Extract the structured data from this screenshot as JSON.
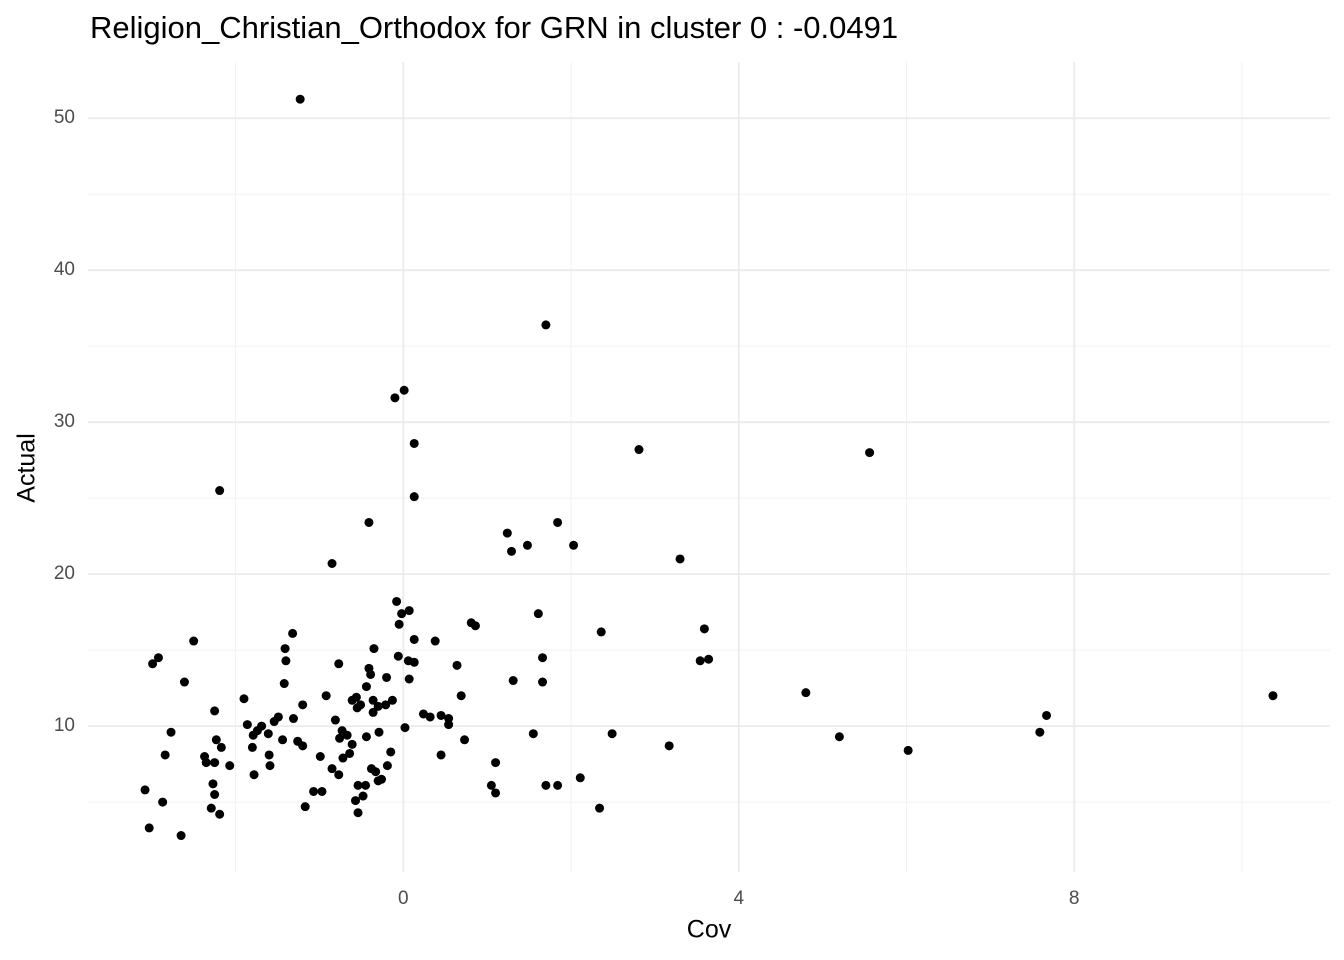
{
  "chart_data": {
    "type": "scatter",
    "title": "Religion_Christian_Orthodox for GRN in cluster 0 : -0.0491",
    "x_label": "Cov",
    "y_label": "Actual",
    "color": "#000000",
    "grid": true,
    "xlim": [
      -3.76,
      11.05
    ],
    "ylim": [
      0.4,
      53.7
    ],
    "xticks": [
      0,
      4,
      8
    ],
    "yticks": [
      10,
      20,
      30,
      40,
      50
    ],
    "xminor": [
      -2,
      2,
      6,
      10
    ],
    "yminor": [
      5,
      15,
      25,
      35,
      45
    ],
    "x": [
      -1.23,
      1.7,
      0.01,
      -0.1,
      0.13,
      2.81,
      5.56,
      -2.19,
      0.13,
      -0.41,
      1.84,
      1.24,
      1.48,
      2.03,
      1.29,
      3.3,
      -0.85,
      -0.08,
      0.07,
      -0.02,
      1.61,
      -0.05,
      0.81,
      0.86,
      -1.32,
      2.36,
      3.59,
      0.13,
      0.38,
      -2.5,
      -0.35,
      -1.41,
      -2.92,
      -2.99,
      -1.4,
      -0.06,
      0.06,
      0.13,
      1.66,
      3.54,
      3.64,
      -0.77,
      0.64,
      -0.41,
      -0.39,
      -0.2,
      0.07,
      1.31,
      1.66,
      -2.61,
      -1.42,
      -0.44,
      0.69,
      4.8,
      10.37,
      -0.92,
      -0.56,
      -1.9,
      -0.61,
      -0.36,
      -0.13,
      -1.2,
      -0.51,
      -0.21,
      -0.3,
      -0.55,
      -2.25,
      -0.36,
      0.24,
      7.67,
      0.32,
      0.45,
      -1.31,
      0.54,
      -1.49,
      -1.54,
      -0.81,
      -1.86,
      0.54,
      -1.69,
      0.02,
      -0.73,
      -1.74,
      -2.77,
      7.59,
      -0.29,
      -1.79,
      -1.61,
      1.55,
      -0.67,
      2.49,
      -0.44,
      -0.76,
      5.2,
      -1.44,
      -2.23,
      -1.26,
      0.73,
      -0.61,
      -1.2,
      3.17,
      -2.17,
      -1.8,
      6.02,
      -0.64,
      -0.15,
      -2.84,
      -1.6,
      0.45,
      -2.37,
      -0.99,
      -0.72,
      -2.35,
      -2.25,
      1.1,
      -2.07,
      -1.59,
      -0.19,
      -0.85,
      -0.38,
      -0.33,
      -0.77,
      -1.78,
      2.11,
      -0.26,
      -0.3,
      -2.27,
      -0.45,
      -0.54,
      1.7,
      1.84,
      1.05,
      -3.08,
      -0.97,
      -1.07,
      1.1,
      -2.25,
      -0.48,
      -0.57,
      -2.87,
      -1.17,
      -2.29,
      2.34,
      -0.54,
      -2.19,
      -3.03,
      -2.65
    ],
    "values": [
      51.25,
      36.4,
      32.1,
      31.6,
      28.6,
      28.2,
      28.0,
      25.5,
      25.1,
      23.4,
      23.4,
      22.7,
      21.9,
      21.9,
      21.5,
      21.0,
      20.7,
      18.2,
      17.6,
      17.4,
      17.4,
      16.7,
      16.8,
      16.6,
      16.1,
      16.2,
      16.4,
      15.7,
      15.6,
      15.6,
      15.1,
      15.1,
      14.5,
      14.1,
      14.3,
      14.6,
      14.3,
      14.2,
      14.5,
      14.3,
      14.4,
      14.1,
      14.0,
      13.8,
      13.4,
      13.2,
      13.1,
      13.0,
      12.9,
      12.9,
      12.8,
      12.6,
      12.0,
      12.2,
      12.0,
      12.0,
      11.9,
      11.8,
      11.7,
      11.7,
      11.7,
      11.4,
      11.4,
      11.4,
      11.3,
      11.2,
      11.0,
      10.9,
      10.8,
      10.7,
      10.6,
      10.7,
      10.5,
      10.5,
      10.6,
      10.3,
      10.4,
      10.1,
      10.1,
      10.0,
      9.9,
      9.7,
      9.7,
      9.6,
      9.6,
      9.6,
      9.4,
      9.5,
      9.5,
      9.4,
      9.5,
      9.3,
      9.2,
      9.3,
      9.1,
      9.1,
      9.0,
      9.1,
      8.8,
      8.7,
      8.7,
      8.6,
      8.6,
      8.4,
      8.2,
      8.3,
      8.1,
      8.1,
      8.1,
      8.0,
      8.0,
      7.9,
      7.6,
      7.6,
      7.6,
      7.4,
      7.4,
      7.4,
      7.2,
      7.2,
      7.0,
      6.8,
      6.8,
      6.6,
      6.5,
      6.4,
      6.2,
      6.1,
      6.1,
      6.1,
      6.1,
      6.1,
      5.8,
      5.7,
      5.7,
      5.6,
      5.5,
      5.4,
      5.1,
      5.0,
      4.7,
      4.6,
      4.6,
      4.3,
      4.2,
      3.3,
      2.8
    ]
  }
}
